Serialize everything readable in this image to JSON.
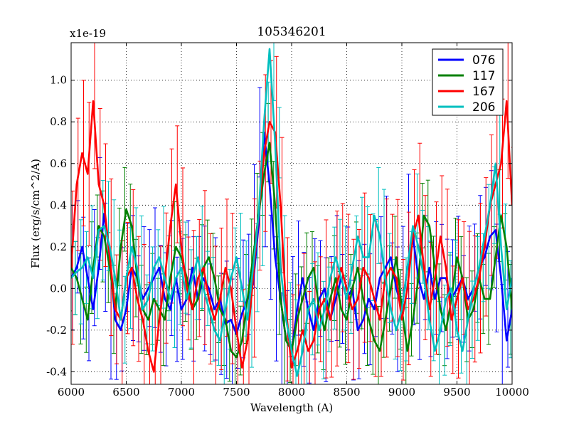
{
  "chart_data": {
    "type": "line",
    "title": "105346201",
    "xlabel": "Wavelength (A)",
    "ylabel": "Flux (erg/s/cm^2/A)",
    "y_multiplier_label": "x1e-19",
    "xlim": [
      6000,
      10000
    ],
    "ylim": [
      -0.46,
      1.18
    ],
    "grid": true,
    "legend_position": "top-right",
    "x_ticks": [
      {
        "value": 6000,
        "label": "6000"
      },
      {
        "value": 6500,
        "label": "6500"
      },
      {
        "value": 7000,
        "label": "7000"
      },
      {
        "value": 7500,
        "label": "7500"
      },
      {
        "value": 8000,
        "label": "8000"
      },
      {
        "value": 8500,
        "label": "8500"
      },
      {
        "value": 9000,
        "label": "9000"
      },
      {
        "value": 9500,
        "label": "9500"
      },
      {
        "value": 10000,
        "label": "10000"
      }
    ],
    "y_ticks": [
      {
        "value": -0.4,
        "label": "-0.4"
      },
      {
        "value": -0.2,
        "label": "-0.2"
      },
      {
        "value": 0.0,
        "label": "0.0"
      },
      {
        "value": 0.2,
        "label": "0.2"
      },
      {
        "value": 0.4,
        "label": "0.4"
      },
      {
        "value": 0.6,
        "label": "0.6"
      },
      {
        "value": 0.8,
        "label": "0.8"
      },
      {
        "value": 1.0,
        "label": "1.0"
      }
    ],
    "x": [
      6000,
      6050,
      6100,
      6150,
      6200,
      6250,
      6300,
      6350,
      6400,
      6450,
      6500,
      6550,
      6600,
      6650,
      6700,
      6750,
      6800,
      6850,
      6900,
      6950,
      7000,
      7050,
      7100,
      7150,
      7200,
      7250,
      7300,
      7350,
      7400,
      7450,
      7500,
      7550,
      7600,
      7650,
      7700,
      7750,
      7800,
      7850,
      7900,
      7950,
      8000,
      8050,
      8100,
      8150,
      8200,
      8250,
      8300,
      8350,
      8400,
      8450,
      8500,
      8550,
      8600,
      8650,
      8700,
      8750,
      8800,
      8850,
      8900,
      8950,
      9000,
      9050,
      9100,
      9150,
      9200,
      9250,
      9300,
      9350,
      9400,
      9450,
      9500,
      9550,
      9600,
      9650,
      9700,
      9750,
      9800,
      9850,
      9900,
      9950,
      10000
    ],
    "series": [
      {
        "name": "076",
        "color": "#0000ff",
        "values": [
          0.05,
          0.1,
          0.2,
          0.05,
          -0.1,
          0.1,
          0.36,
          0.15,
          -0.15,
          -0.2,
          -0.1,
          0.1,
          0.05,
          -0.05,
          0.0,
          0.05,
          0.1,
          -0.05,
          -0.1,
          0.05,
          -0.1,
          -0.05,
          0.1,
          -0.05,
          0.05,
          0.0,
          -0.1,
          -0.05,
          -0.17,
          -0.15,
          -0.22,
          -0.12,
          -0.05,
          0.02,
          0.3,
          0.75,
          0.5,
          0.15,
          -0.05,
          -0.25,
          -0.3,
          -0.1,
          0.05,
          -0.1,
          -0.2,
          -0.05,
          0.0,
          -0.15,
          -0.05,
          0.05,
          -0.05,
          0.0,
          -0.2,
          -0.15,
          -0.05,
          -0.1,
          0.05,
          0.1,
          0.15,
          0.0,
          -0.1,
          0.1,
          0.25,
          0.05,
          -0.05,
          0.1,
          -0.05,
          0.05,
          0.05,
          -0.05,
          0.0,
          0.05,
          -0.05,
          0.0,
          0.1,
          0.15,
          0.25,
          0.28,
          0.05,
          -0.25,
          -0.1
        ]
      },
      {
        "name": "117",
        "color": "#008000",
        "values": [
          0.1,
          0.05,
          -0.05,
          -0.15,
          0.1,
          0.3,
          0.25,
          0.1,
          -0.1,
          0.2,
          0.38,
          0.3,
          0.05,
          -0.1,
          -0.15,
          -0.05,
          -0.1,
          -0.15,
          0.05,
          0.2,
          0.15,
          0.05,
          -0.1,
          -0.05,
          0.1,
          0.15,
          0.05,
          -0.1,
          -0.15,
          -0.3,
          -0.33,
          -0.25,
          -0.05,
          0.15,
          0.35,
          0.55,
          0.7,
          0.4,
          -0.05,
          -0.25,
          -0.3,
          -0.15,
          -0.05,
          0.05,
          0.1,
          -0.1,
          -0.2,
          -0.05,
          0.05,
          -0.1,
          -0.15,
          0.0,
          0.1,
          -0.05,
          -0.15,
          -0.25,
          -0.3,
          -0.15,
          0.0,
          0.15,
          -0.1,
          -0.3,
          -0.15,
          0.05,
          0.35,
          0.3,
          0.1,
          -0.1,
          -0.2,
          -0.05,
          0.15,
          0.05,
          -0.15,
          -0.1,
          0.05,
          -0.05,
          -0.05,
          0.15,
          0.35,
          0.2,
          -0.1
        ]
      },
      {
        "name": "167",
        "color": "#ff0000",
        "values": [
          0.1,
          0.5,
          0.65,
          0.55,
          0.9,
          0.5,
          0.4,
          0.15,
          -0.1,
          -0.15,
          0.05,
          0.1,
          -0.05,
          -0.15,
          -0.3,
          -0.4,
          -0.15,
          0.05,
          0.3,
          0.5,
          0.2,
          0.0,
          -0.1,
          0.05,
          0.1,
          -0.05,
          -0.15,
          -0.05,
          0.1,
          0.0,
          -0.2,
          -0.38,
          -0.25,
          0.05,
          0.35,
          0.65,
          0.8,
          0.75,
          0.4,
          -0.1,
          -0.38,
          -0.3,
          -0.2,
          -0.3,
          -0.25,
          -0.1,
          -0.05,
          -0.15,
          0.0,
          0.1,
          0.0,
          -0.1,
          -0.05,
          0.1,
          0.05,
          -0.05,
          -0.15,
          0.05,
          0.1,
          0.05,
          -0.15,
          0.0,
          0.25,
          0.35,
          0.1,
          -0.1,
          0.05,
          0.25,
          0.1,
          -0.15,
          -0.05,
          0.05,
          -0.1,
          -0.05,
          0.05,
          0.2,
          0.4,
          0.5,
          0.6,
          0.9,
          0.4
        ]
      },
      {
        "name": "206",
        "color": "#00bfbf",
        "values": [
          0.05,
          0.08,
          0.1,
          0.15,
          0.05,
          0.28,
          0.3,
          0.2,
          0.05,
          -0.15,
          0.05,
          0.2,
          0.1,
          -0.1,
          -0.05,
          0.1,
          0.15,
          0.05,
          -0.05,
          0.05,
          0.1,
          -0.05,
          0.05,
          0.15,
          0.0,
          -0.1,
          -0.2,
          -0.25,
          -0.1,
          0.05,
          0.15,
          0.0,
          -0.15,
          0.1,
          0.35,
          0.8,
          1.15,
          0.7,
          0.1,
          -0.15,
          -0.3,
          -0.42,
          -0.3,
          -0.1,
          -0.05,
          -0.2,
          -0.1,
          0.05,
          0.15,
          0.05,
          -0.05,
          0.1,
          0.25,
          0.15,
          0.15,
          0.35,
          0.25,
          0.05,
          -0.1,
          -0.2,
          -0.1,
          0.1,
          0.3,
          0.2,
          0.05,
          -0.15,
          -0.3,
          -0.2,
          -0.05,
          0.0,
          -0.2,
          -0.3,
          -0.15,
          0.0,
          0.1,
          0.25,
          0.4,
          0.6,
          0.2,
          -0.1,
          0.05
        ]
      }
    ],
    "error_bar_halfwidth": [
      0.3,
      0.22,
      0.38,
      0.25
    ]
  }
}
